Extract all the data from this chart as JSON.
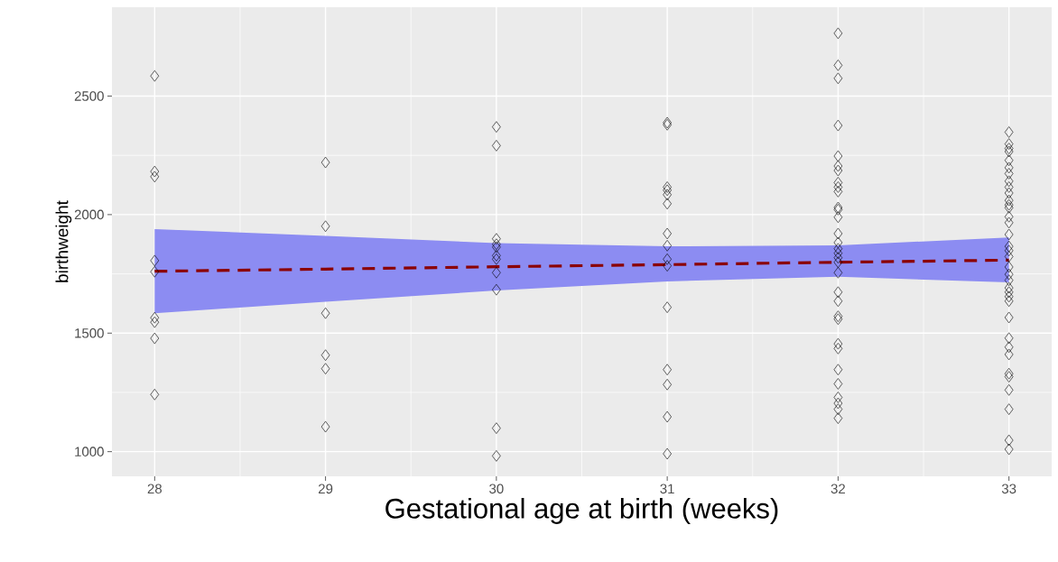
{
  "chart_data": {
    "type": "scatter",
    "xlabel": "Gestational age at birth (weeks)",
    "ylabel": "birthweight",
    "xlim": [
      27.75,
      33.25
    ],
    "ylim": [
      896,
      2875
    ],
    "xticks": [
      28,
      29,
      30,
      31,
      32,
      33
    ],
    "yticks": [
      1000,
      1500,
      2000,
      2500
    ],
    "grid": true,
    "series": [
      {
        "color": "#000000",
        "marker": "diamond",
        "x": [
          28,
          28,
          28,
          28,
          28,
          28,
          28,
          28,
          28,
          29,
          29,
          29,
          29,
          29,
          29,
          30,
          30,
          30,
          30,
          30,
          30,
          30,
          30,
          30,
          30,
          30,
          31,
          31,
          31,
          31,
          31,
          31,
          31,
          31,
          31,
          31,
          31,
          31,
          31,
          31,
          31,
          32,
          32,
          32,
          32,
          32,
          32,
          32,
          32,
          32,
          32,
          32,
          32,
          32,
          32,
          32,
          32,
          32,
          32,
          32,
          32,
          32,
          32,
          32,
          32,
          32,
          32,
          32,
          32,
          32,
          32,
          32,
          32,
          33,
          33,
          33,
          33,
          33,
          33,
          33,
          33,
          33,
          33,
          33,
          33,
          33,
          33,
          33,
          33,
          33,
          33,
          33,
          33,
          33,
          33,
          33,
          33,
          33,
          33,
          33,
          33,
          33,
          33,
          33,
          33,
          33,
          33,
          33,
          33
        ],
        "values": [
          2585,
          2182,
          2160,
          1806,
          1759,
          1565,
          1546,
          1478,
          1241,
          2220,
          1951,
          1584,
          1407,
          1350,
          1105,
          2370,
          2291,
          1898,
          1875,
          1863,
          1827,
          1812,
          1755,
          1683,
          1099,
          982,
          2388,
          2379,
          2116,
          2103,
          2084,
          2046,
          1920,
          1869,
          1812,
          1784,
          1609,
          1346,
          1283,
          1147,
          991,
          2765,
          2630,
          2575,
          2376,
          2247,
          2205,
          2186,
          2135,
          2116,
          2097,
          2030,
          2021,
          1989,
          1920,
          1882,
          1856,
          1837,
          1818,
          1799,
          1755,
          1673,
          1635,
          1571,
          1559,
          1455,
          1435,
          1346,
          1286,
          1229,
          1204,
          1179,
          1141,
          2348,
          2298,
          2279,
          2266,
          2229,
          2198,
          2173,
          2141,
          2116,
          2091,
          2060,
          2041,
          2029,
          1991,
          1966,
          1916,
          1866,
          1848,
          1823,
          1779,
          1748,
          1723,
          1691,
          1673,
          1654,
          1635,
          1566,
          1479,
          1441,
          1410,
          1329,
          1316,
          1260,
          1179,
          1048,
          1010
        ]
      },
      {
        "type": "line",
        "color": "#8b0000",
        "line_style": "dashed",
        "marker": "none",
        "x": [
          28,
          29,
          30,
          31,
          32,
          33
        ],
        "values": [
          1761,
          1770,
          1780,
          1789,
          1799,
          1808
        ],
        "lower": [
          1584,
          1632,
          1680,
          1718,
          1738,
          1714
        ],
        "upper": [
          1939,
          1910,
          1880,
          1866,
          1870,
          1904
        ]
      }
    ]
  }
}
